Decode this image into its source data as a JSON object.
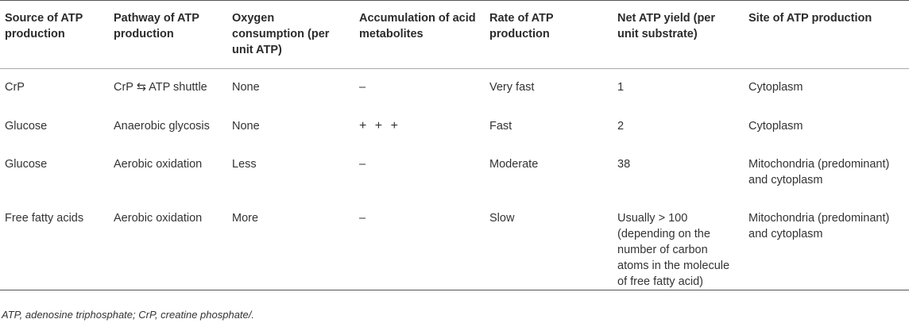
{
  "headers": [
    "Source of ATP production",
    "Pathway of ATP production",
    "Oxygen consumption (per unit ATP)",
    "Accumulation of acid metabolites",
    "Rate of ATP production",
    "Net ATP yield (per unit substrate)",
    "Site of ATP production"
  ],
  "rows": [
    [
      "CrP",
      "CrP ⇆ ATP shuttle",
      "None",
      "–",
      "Very fast",
      "1",
      "Cytoplasm"
    ],
    [
      "Glucose",
      "Anaerobic glycosis",
      "None",
      "+ + +",
      "Fast",
      "2",
      "Cytoplasm"
    ],
    [
      "Glucose",
      "Aerobic oxidation",
      "Less",
      "–",
      "Moderate",
      "38",
      "Mitochondria (predominant) and cytoplasm"
    ],
    [
      "Free fatty acids",
      "Aerobic oxidation",
      "More",
      "–",
      "Slow",
      "Usually > 100 (depending on the number of carbon atoms in the molecule of free fatty acid)",
      "Mitochondria (predominant) and cytoplasm"
    ]
  ],
  "footnote": "ATP, adenosine triphosphate; CrP, creatine phosphate/."
}
